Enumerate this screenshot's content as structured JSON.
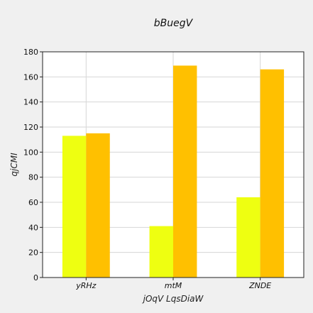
{
  "chart_data": {
    "type": "bar",
    "title": "bBuegV",
    "xlabel": "jOqV LqsDiaW",
    "ylabel": "qjCMI",
    "categories": [
      "yRHz",
      "mtM",
      "ZNDE"
    ],
    "series": [
      {
        "values": [
          113,
          41,
          64
        ],
        "color": "#eeff11"
      },
      {
        "values": [
          115,
          169,
          166
        ],
        "color": "#ffc000"
      }
    ],
    "ylim": [
      0,
      180
    ],
    "yticks": [
      0,
      20,
      40,
      60,
      80,
      100,
      120,
      140,
      160,
      180
    ],
    "grid": true
  }
}
